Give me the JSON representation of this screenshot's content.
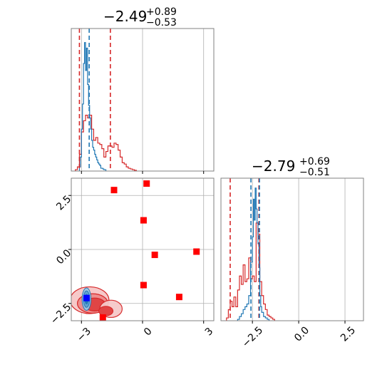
{
  "colors": {
    "blue": "#1f77b4",
    "red": "#d62728",
    "marker_red": "#ff0000",
    "marker_blue": "#0000ff",
    "grid": "#b0b0b0",
    "frame": "#808080"
  },
  "chart_data": {
    "type": "corner",
    "panels": [
      {
        "id": "p0",
        "type": "histogram",
        "xlim": [
          -3.5,
          3.5
        ],
        "grid": true,
        "title": {
          "median": "−2.49",
          "plus": "+0.89",
          "minus": "−0.53"
        },
        "quantiles": {
          "blue": [
            -2.62
          ],
          "red": [
            -3.1,
            -1.58
          ]
        },
        "blue_bins": {
          "edges": [
            -3.1,
            -3.05,
            -3.0,
            -2.95,
            -2.9,
            -2.85,
            -2.8,
            -2.75,
            -2.7,
            -2.65,
            -2.6,
            -2.55,
            -2.5,
            -2.45,
            -2.4,
            -2.35,
            -2.3,
            -2.25,
            -2.2,
            -2.15,
            -2.1,
            -2.05,
            -2.0,
            -1.95,
            -1.9,
            -1.85,
            -1.8
          ],
          "counts": [
            0.03,
            0.1,
            0.3,
            0.48,
            0.77,
            0.92,
            0.72,
            0.88,
            0.62,
            0.47,
            0.38,
            0.3,
            0.22,
            0.17,
            0.15,
            0.12,
            0.1,
            0.08,
            0.06,
            0.05,
            0.04,
            0.02,
            0.02,
            0.015,
            0.01,
            0.01
          ]
        },
        "red_bins": {
          "edges": [
            -3.3,
            -3.2,
            -3.1,
            -3.0,
            -2.9,
            -2.8,
            -2.7,
            -2.6,
            -2.5,
            -2.4,
            -2.3,
            -2.2,
            -2.1,
            -2.0,
            -1.9,
            -1.8,
            -1.7,
            -1.6,
            -1.5,
            -1.4,
            -1.3,
            -1.2,
            -1.1,
            -1.0,
            -0.9,
            -0.8,
            -0.7,
            -0.6,
            -0.5,
            -0.4,
            -0.3
          ],
          "counts": [
            0.01,
            0.03,
            0.12,
            0.28,
            0.36,
            0.4,
            0.38,
            0.4,
            0.3,
            0.22,
            0.24,
            0.2,
            0.19,
            0.16,
            0.1,
            0.14,
            0.18,
            0.18,
            0.17,
            0.2,
            0.19,
            0.15,
            0.1,
            0.06,
            0.05,
            0.03,
            0.02,
            0.015,
            0.01,
            0.005
          ]
        },
        "ymax": 1.0
      },
      {
        "id": "p2",
        "type": "scatter2d",
        "xlim": [
          -3.5,
          3.5
        ],
        "ylim": [
          -3.3,
          3.3
        ],
        "grid": true,
        "xticks": [
          -3,
          0,
          3
        ],
        "xtick_labels": [
          "−3",
          "0",
          "3"
        ],
        "yticks": [
          -2.5,
          0.0,
          2.5
        ],
        "ytick_labels": [
          "−2.5",
          "0.0",
          "2.5"
        ],
        "red_squares": [
          [
            -1.4,
            2.75
          ],
          [
            0.2,
            3.05
          ],
          [
            0.05,
            1.35
          ],
          [
            0.6,
            -0.25
          ],
          [
            2.65,
            -0.1
          ],
          [
            0.05,
            -1.65
          ],
          [
            1.8,
            -2.2
          ],
          [
            -1.95,
            -3.15
          ]
        ],
        "blue_square": [
          -2.75,
          -2.25
        ],
        "red_contour_levels": [
          {
            "cx": -2.6,
            "cy": -2.35,
            "rx": 0.95,
            "ry": 0.62,
            "fill": "#f6c9c9"
          },
          {
            "cx": -2.45,
            "cy": -2.5,
            "rx": 0.75,
            "ry": 0.45,
            "fill": "#ee8d8d"
          },
          {
            "cx": -2.35,
            "cy": -2.55,
            "rx": 0.52,
            "ry": 0.3,
            "fill": "#e04545"
          }
        ],
        "blue_contour_levels": [
          {
            "cx": -2.75,
            "cy": -2.3,
            "rx": 0.22,
            "ry": 0.52,
            "fill": "#9cc6e6"
          },
          {
            "cx": -2.75,
            "cy": -2.3,
            "rx": 0.15,
            "ry": 0.38,
            "fill": "#5d9fd1"
          },
          {
            "cx": -2.75,
            "cy": -2.3,
            "rx": 0.08,
            "ry": 0.22,
            "fill": "#1f77b4"
          }
        ]
      },
      {
        "id": "p3",
        "type": "histogram",
        "xlim": [
          -4.2,
          3.5
        ],
        "grid": true,
        "xticks": [
          -2.5,
          0.0,
          2.5
        ],
        "xtick_labels": [
          "−2.5",
          "0.0",
          "2.5"
        ],
        "title": {
          "median": "−2.79",
          "plus": "+0.69",
          "minus": "−0.51"
        },
        "quantiles": {
          "blue": [
            -2.58,
            -2.12
          ],
          "red": [
            -3.7,
            -2.15
          ]
        },
        "blue_bins": {
          "edges": [
            -3.3,
            -3.2,
            -3.1,
            -3.0,
            -2.9,
            -2.8,
            -2.7,
            -2.6,
            -2.5,
            -2.45,
            -2.4,
            -2.35,
            -2.3,
            -2.25,
            -2.2,
            -2.15,
            -2.1,
            -2.05,
            -2.0,
            -1.9,
            -1.8,
            -1.7,
            -1.6
          ],
          "counts": [
            0.01,
            0.03,
            0.05,
            0.08,
            0.1,
            0.12,
            0.18,
            0.42,
            0.6,
            0.87,
            0.72,
            0.95,
            0.8,
            0.7,
            0.55,
            0.38,
            0.18,
            0.1,
            0.06,
            0.03,
            0.02,
            0.01
          ]
        },
        "red_bins": {
          "edges": [
            -3.9,
            -3.8,
            -3.7,
            -3.6,
            -3.5,
            -3.4,
            -3.3,
            -3.2,
            -3.1,
            -3.0,
            -2.9,
            -2.8,
            -2.7,
            -2.6,
            -2.5,
            -2.4,
            -2.3,
            -2.2,
            -2.1,
            -2.0,
            -1.9,
            -1.8,
            -1.7,
            -1.6,
            -1.5,
            -1.4,
            -1.3
          ],
          "counts": [
            0.02,
            0.08,
            0.14,
            0.1,
            0.17,
            0.1,
            0.22,
            0.32,
            0.26,
            0.4,
            0.28,
            0.3,
            0.45,
            0.3,
            0.32,
            0.28,
            0.7,
            0.62,
            0.28,
            0.18,
            0.12,
            0.08,
            0.04,
            0.03,
            0.02,
            0.01
          ]
        },
        "ymax": 1.0
      }
    ]
  }
}
